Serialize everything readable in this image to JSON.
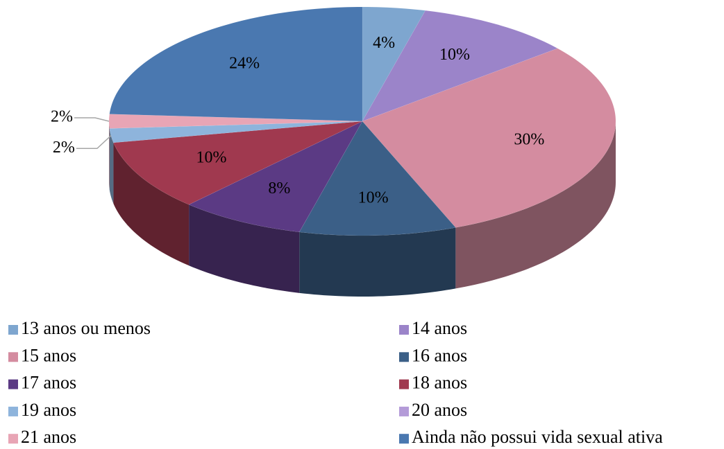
{
  "chart_data": {
    "type": "pie",
    "categories": [
      "13 anos ou menos",
      "14 anos",
      "15 anos",
      "16 anos",
      "17 anos",
      "18 anos",
      "19 anos",
      "20 anos",
      "21 anos",
      "Ainda não possui vida sexual ativa"
    ],
    "values": [
      4,
      10,
      30,
      10,
      8,
      10,
      2,
      0,
      2,
      24
    ],
    "value_labels": [
      "4%",
      "10%",
      "30%",
      "10%",
      "8%",
      "10%",
      "2%",
      null,
      "2%",
      "24%"
    ],
    "colors": [
      "#7ea6cf",
      "#9b84c9",
      "#d48ca0",
      "#3b5f87",
      "#5b3a84",
      "#a0394f",
      "#8eb4dc",
      "#b49bd8",
      "#e8a5b5",
      "#4a78b0"
    ]
  }
}
